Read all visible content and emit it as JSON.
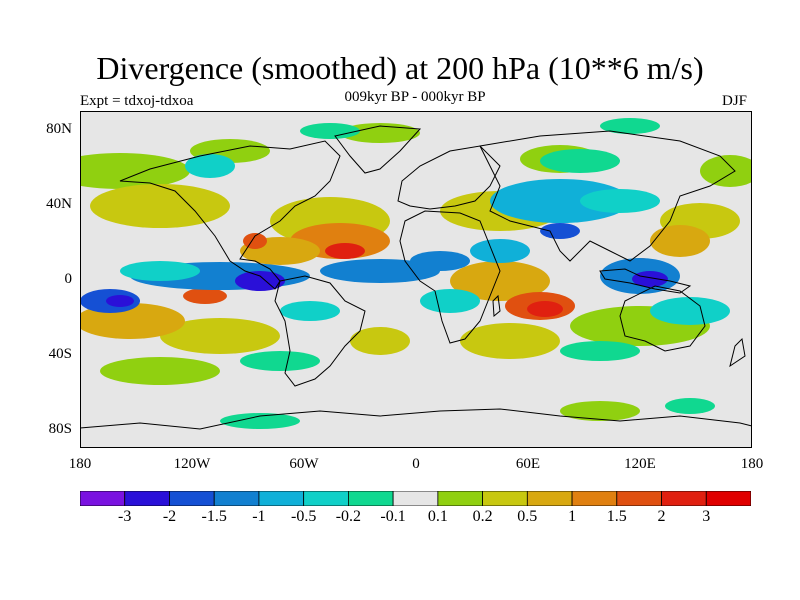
{
  "title": "Divergence (smoothed) at 200 hPa (10**6 m/s)",
  "subtitle": "009kyr BP - 000kyr BP",
  "experiment": "Expt = tdxoj-tdxoa",
  "season": "DJF",
  "lat_labels": [
    "80N",
    "40N",
    "0",
    "40S",
    "80S"
  ],
  "lon_labels": [
    "180",
    "120W",
    "60W",
    "0",
    "60E",
    "120E",
    "180"
  ],
  "colorbar": {
    "labels": [
      "-3",
      "-2",
      "-1.5",
      "-1",
      "-0.5",
      "-0.2",
      "-0.1",
      "0.1",
      "0.2",
      "0.5",
      "1",
      "1.5",
      "2",
      "3"
    ],
    "colors": [
      "#7a12e0",
      "#2a10d8",
      "#1550d4",
      "#1280d0",
      "#10b0d8",
      "#10d0c8",
      "#10d890",
      "#e6e6e6",
      "#90d010",
      "#c8c810",
      "#d8a810",
      "#e08010",
      "#e05010",
      "#e02010",
      "#e00000"
    ]
  }
}
